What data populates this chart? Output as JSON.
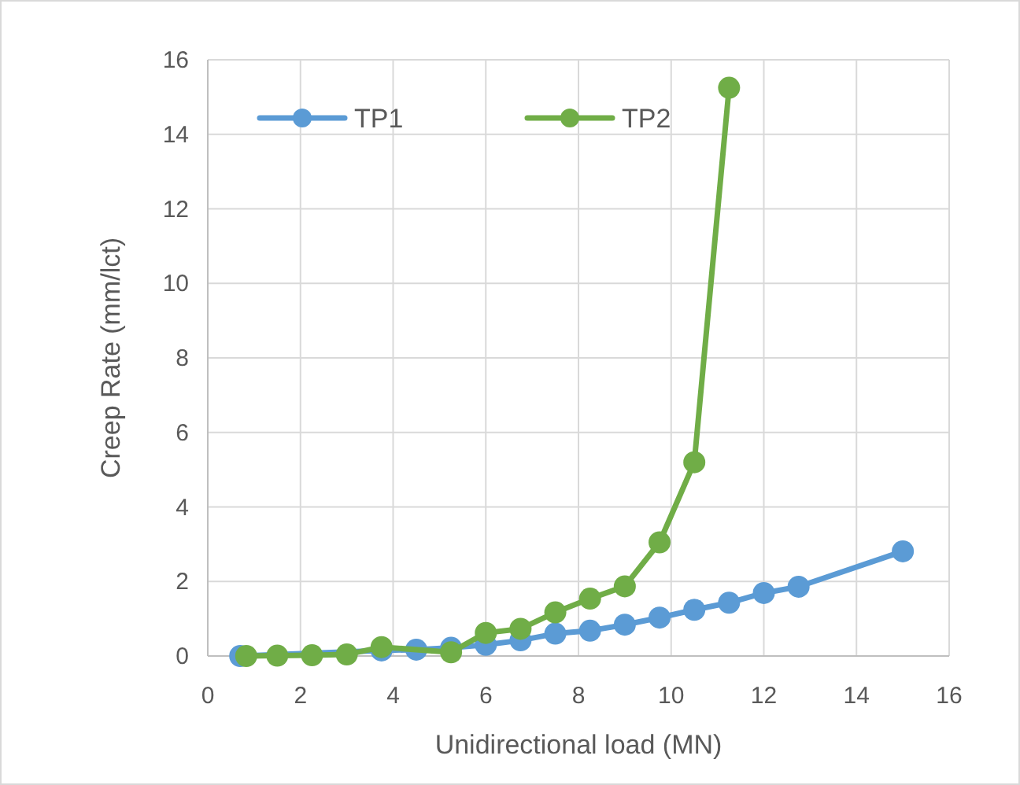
{
  "chart_data": {
    "type": "line",
    "xlabel": "Unidirectional load (MN)",
    "ylabel": "Creep Rate (mm/lct)",
    "xlim": [
      0,
      16
    ],
    "xticks": [
      0,
      2,
      4,
      6,
      8,
      10,
      12,
      14,
      16
    ],
    "ylim": [
      0,
      16
    ],
    "yticks": [
      0,
      2,
      4,
      6,
      8,
      10,
      12,
      14,
      16
    ],
    "grid": true,
    "legend": "top left",
    "marker": "circle",
    "line_style": "solid",
    "series": [
      {
        "name": "TP1",
        "color": "#5b9bd5",
        "x": [
          0.7,
          1.5,
          2.25,
          3,
          3.75,
          4.5,
          5.25,
          6,
          6.75,
          7.5,
          8.25,
          9,
          9.75,
          10.5,
          11.25,
          12,
          12.75,
          15
        ],
        "values": [
          0,
          null,
          null,
          null,
          0.15,
          0.17,
          0.22,
          0.3,
          0.42,
          0.6,
          0.68,
          0.84,
          1.03,
          1.24,
          1.43,
          1.69,
          1.86,
          2.81
        ]
      },
      {
        "name": "TP2",
        "color": "#70ad47",
        "x": [
          0.83,
          1.5,
          2.25,
          3,
          3.75,
          5.25,
          6,
          6.75,
          7.5,
          8.25,
          9,
          9.75,
          10.5,
          11.25
        ],
        "values": [
          0,
          0.01,
          0.02,
          0.04,
          0.24,
          0.1,
          0.62,
          0.73,
          1.17,
          1.54,
          1.87,
          3.05,
          5.2,
          15.25
        ]
      }
    ]
  }
}
